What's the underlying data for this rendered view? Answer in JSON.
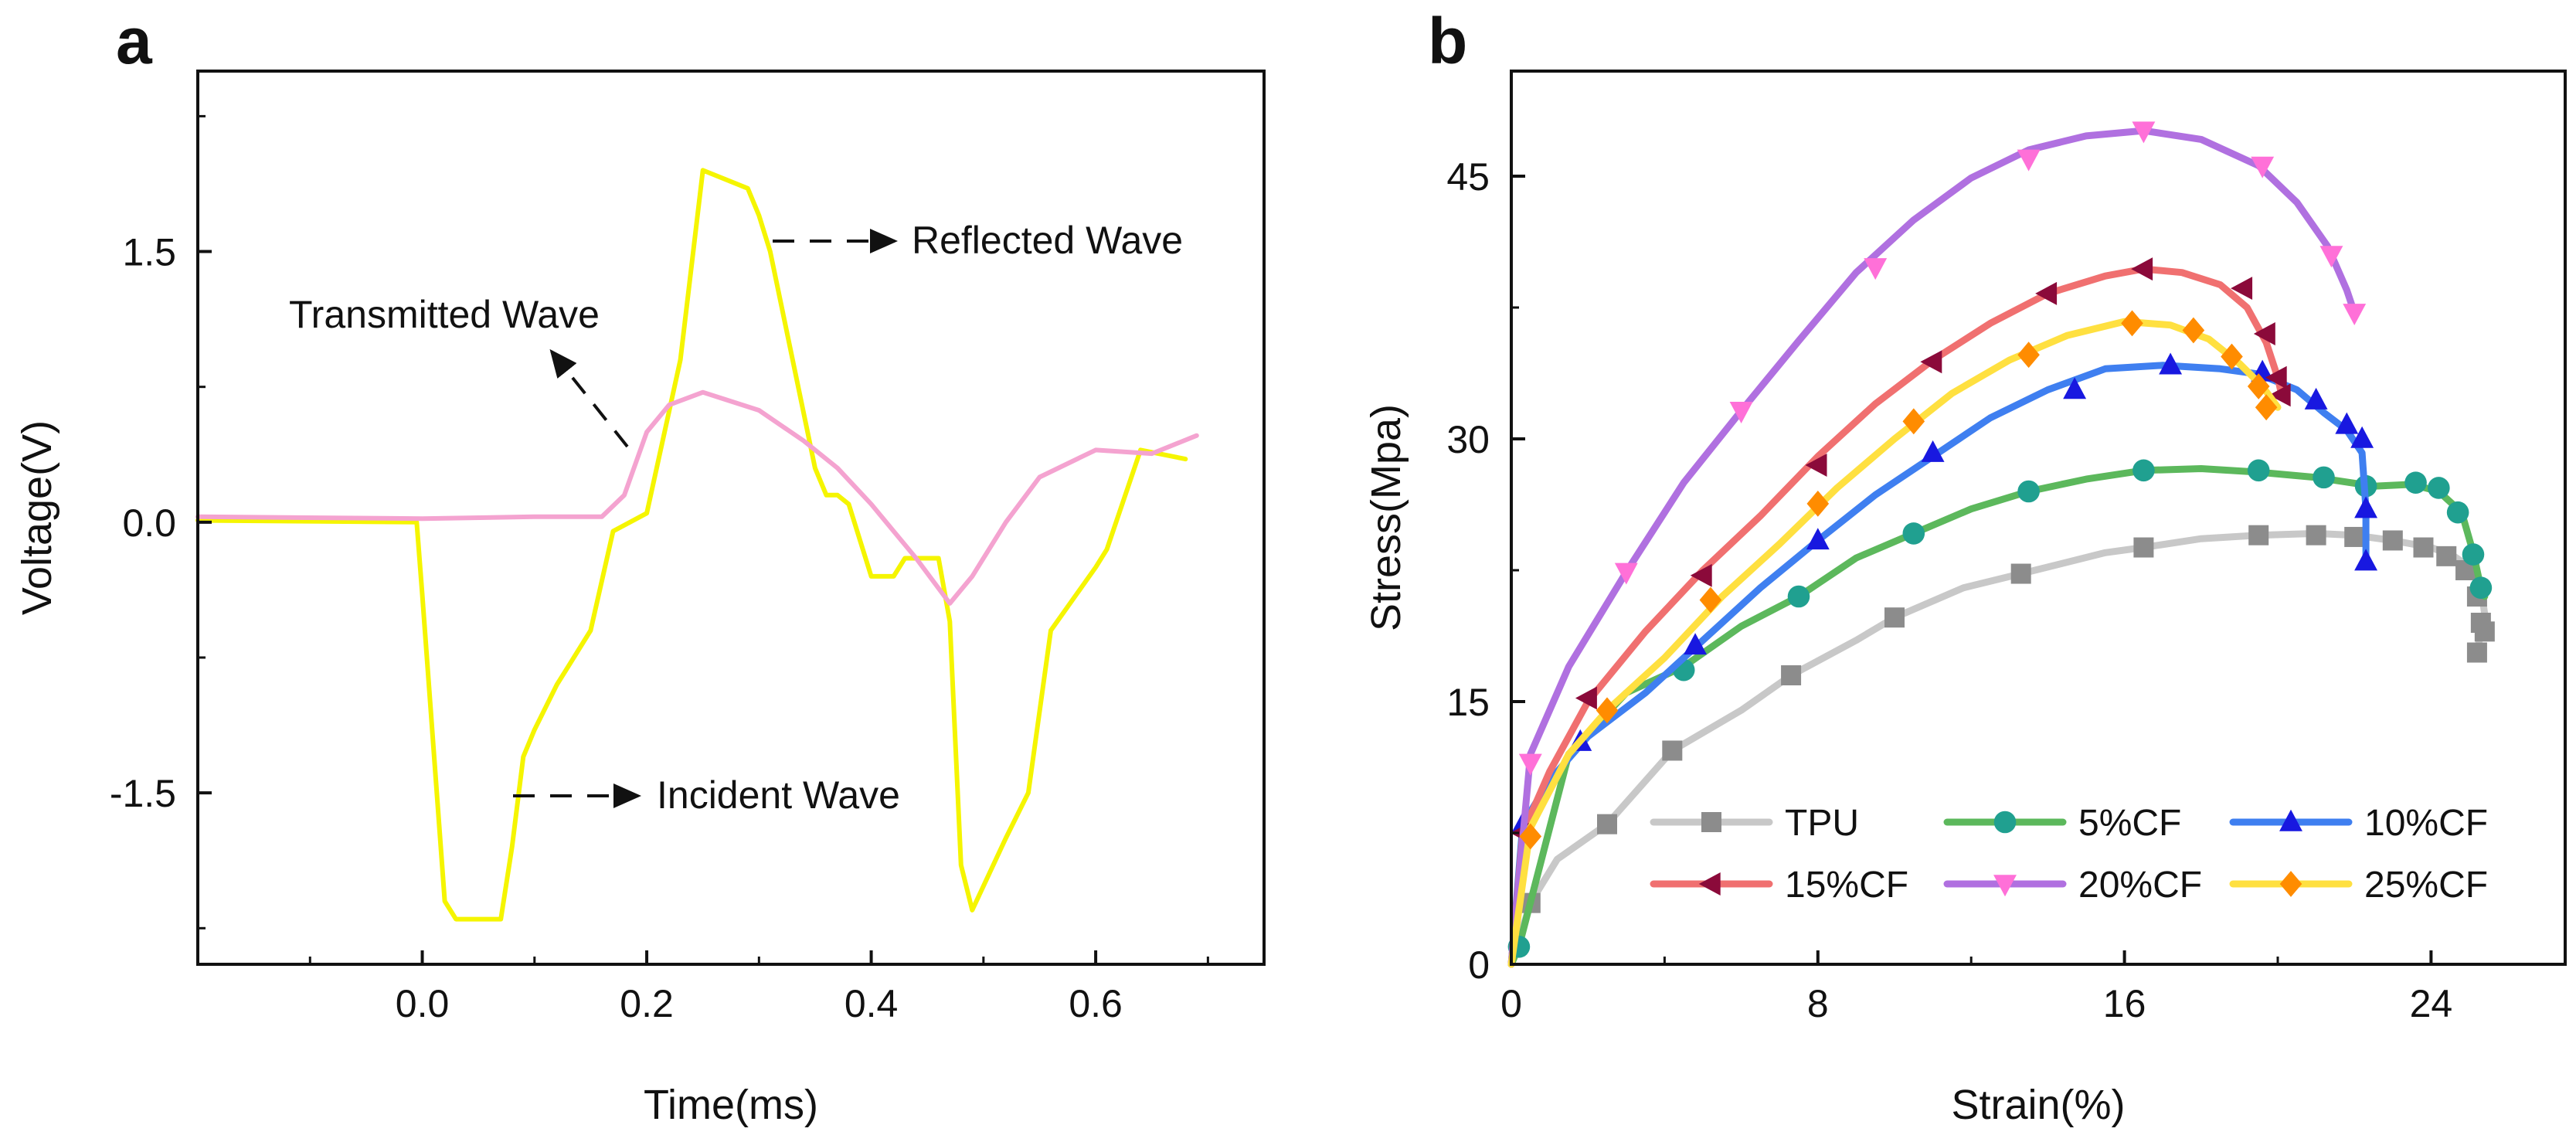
{
  "chart_data": [
    {
      "panel": "a",
      "type": "line",
      "xlabel": "Time(ms)",
      "ylabel": "Voltage(V)",
      "xlim": [
        -0.2,
        0.75
      ],
      "ylim": [
        -2.45,
        2.5
      ],
      "xticks": [
        0.0,
        0.2,
        0.4,
        0.6
      ],
      "xtick_labels": [
        "0.0",
        "0.2",
        "0.4",
        "0.6"
      ],
      "yticks": [
        1.5,
        0.0,
        -1.5
      ],
      "ytick_labels": [
        "1.5",
        "0.0",
        "-1.5"
      ],
      "annotations": {
        "reflected": "Reflected Wave",
        "transmitted": "Transmitted Wave",
        "incident": "Incident Wave"
      },
      "series": [
        {
          "name": "Incident/Reflected (yellow)",
          "color": "#f5f500",
          "x": [
            -0.2,
            -0.005,
            0.0,
            0.02,
            0.03,
            0.07,
            0.08,
            0.09,
            0.1,
            0.12,
            0.13,
            0.15,
            0.17,
            0.2,
            0.23,
            0.25,
            0.29,
            0.3,
            0.31,
            0.35,
            0.36,
            0.37,
            0.38,
            0.4,
            0.42,
            0.43,
            0.46,
            0.47,
            0.48,
            0.49,
            0.52,
            0.54,
            0.56,
            0.6,
            0.61,
            0.64,
            0.68
          ],
          "y": [
            0.01,
            0.0,
            -0.4,
            -2.1,
            -2.2,
            -2.2,
            -1.8,
            -1.3,
            -1.15,
            -0.9,
            -0.8,
            -0.6,
            -0.05,
            0.05,
            0.9,
            1.95,
            1.85,
            1.7,
            1.5,
            0.3,
            0.15,
            0.15,
            0.1,
            -0.3,
            -0.3,
            -0.2,
            -0.2,
            -0.55,
            -1.9,
            -2.15,
            -1.75,
            -1.5,
            -0.6,
            -0.25,
            -0.15,
            0.4,
            0.35
          ]
        },
        {
          "name": "Transmitted (pink)",
          "color": "#f4a3d0",
          "x": [
            -0.2,
            0.0,
            0.1,
            0.16,
            0.18,
            0.2,
            0.22,
            0.25,
            0.27,
            0.3,
            0.34,
            0.37,
            0.4,
            0.42,
            0.44,
            0.47,
            0.49,
            0.52,
            0.55,
            0.6,
            0.65,
            0.69
          ],
          "y": [
            0.03,
            0.02,
            0.03,
            0.03,
            0.15,
            0.5,
            0.65,
            0.72,
            0.68,
            0.62,
            0.45,
            0.3,
            0.1,
            -0.05,
            -0.2,
            -0.45,
            -0.3,
            0.0,
            0.25,
            0.4,
            0.38,
            0.48
          ]
        }
      ]
    },
    {
      "panel": "b",
      "type": "line",
      "xlabel": "Strain(%)",
      "ylabel": "Stress(Mpa)",
      "xlim": [
        0,
        27.5
      ],
      "ylim": [
        0,
        51
      ],
      "xticks": [
        0,
        8,
        16,
        24
      ],
      "xtick_labels": [
        "0",
        "8",
        "16",
        "24"
      ],
      "yticks": [
        0,
        15,
        30,
        45
      ],
      "ytick_labels": [
        "0",
        "15",
        "30",
        "45"
      ],
      "legend": {
        "placement": "lower-right",
        "entries": [
          "TPU",
          "5%CF",
          "10%CF",
          "15%CF",
          "20%CF",
          "25%CF"
        ]
      },
      "series": [
        {
          "name": "TPU",
          "color": "#c8c8c8",
          "marker_color": "#8c8c8c",
          "marker": "square",
          "x": [
            0,
            0.5,
            1.2,
            2.5,
            4.2,
            6.0,
            7.3,
            9.0,
            10.0,
            11.8,
            13.3,
            15.5,
            16.5,
            18.0,
            19.5,
            21.0,
            22.0,
            23.0,
            24.0,
            24.6,
            25.0,
            25.3,
            25.4,
            25.3,
            25.2
          ],
          "y": [
            0,
            3.5,
            6.0,
            8.0,
            12.2,
            14.5,
            16.5,
            18.5,
            19.8,
            21.5,
            22.3,
            23.5,
            23.8,
            24.3,
            24.5,
            24.6,
            24.5,
            24.2,
            23.8,
            23.3,
            22.7,
            21.5,
            20.0,
            19.0,
            17.8
          ],
          "markers_x": [
            0.5,
            2.5,
            4.2,
            7.3,
            10.0,
            13.3,
            16.5,
            19.5,
            21.0,
            22.0,
            23.0,
            23.8,
            24.4,
            24.9,
            25.2,
            25.3,
            25.4,
            25.2
          ],
          "markers_y": [
            3.5,
            8.0,
            12.2,
            16.5,
            19.8,
            22.3,
            23.8,
            24.5,
            24.5,
            24.4,
            24.2,
            23.8,
            23.3,
            22.5,
            21.0,
            19.5,
            19.0,
            17.8
          ]
        },
        {
          "name": "5%CF",
          "color": "#5cb85c",
          "marker_color": "#20a090",
          "marker": "circle",
          "x": [
            0,
            0.2,
            1.5,
            3.0,
            4.5,
            6.0,
            7.5,
            9.0,
            10.5,
            12.0,
            13.5,
            15.0,
            16.5,
            18.0,
            19.5,
            21.0,
            22.5,
            23.5,
            24.2,
            24.8,
            25.1,
            25.3,
            25.4
          ],
          "y": [
            0,
            1.0,
            12.0,
            15.5,
            17.0,
            19.3,
            21.0,
            23.2,
            24.6,
            26.0,
            27.0,
            27.7,
            28.2,
            28.3,
            28.1,
            27.8,
            27.3,
            27.4,
            27.0,
            25.8,
            23.5,
            21.5,
            21.0
          ],
          "markers_x": [
            0.2,
            4.5,
            7.5,
            10.5,
            13.5,
            16.5,
            19.5,
            21.2,
            22.3,
            23.6,
            24.2,
            24.7,
            25.1,
            25.3
          ],
          "markers_y": [
            1.0,
            16.8,
            21.0,
            24.6,
            27.0,
            28.2,
            28.2,
            27.8,
            27.3,
            27.5,
            27.2,
            25.8,
            23.4,
            21.5
          ]
        },
        {
          "name": "10%CF",
          "color": "#3f7ff0",
          "marker_color": "#1818e0",
          "marker": "triangle-up",
          "x": [
            0,
            0.3,
            1.0,
            2.0,
            3.5,
            5.0,
            6.5,
            8.0,
            9.5,
            11.0,
            12.5,
            14.0,
            15.5,
            17.0,
            18.5,
            19.5,
            20.5,
            21.2,
            21.8,
            22.2,
            22.3,
            22.3
          ],
          "y": [
            0,
            8.0,
            10.5,
            13.0,
            15.5,
            18.5,
            21.5,
            24.2,
            26.8,
            29.0,
            31.2,
            32.8,
            34.0,
            34.2,
            34.0,
            33.7,
            32.8,
            31.5,
            30.5,
            29.2,
            26.0,
            23.0
          ],
          "markers_x": [
            0.3,
            1.8,
            4.8,
            8.0,
            11.0,
            14.7,
            17.2,
            19.6,
            21.0,
            21.8,
            22.2,
            22.3,
            22.3
          ],
          "markers_y": [
            8.0,
            12.7,
            18.2,
            24.2,
            29.2,
            32.8,
            34.2,
            33.8,
            32.2,
            30.8,
            30.0,
            26.0,
            23.0
          ]
        },
        {
          "name": "15%CF",
          "color": "#f07070",
          "marker_color": "#8b0a3a",
          "marker": "triangle-left",
          "x": [
            0,
            0.3,
            1.0,
            2.0,
            3.5,
            5.0,
            6.5,
            8.0,
            9.5,
            11.0,
            12.5,
            14.0,
            15.5,
            16.5,
            17.5,
            18.5,
            19.2,
            19.7,
            20.0,
            20.1
          ],
          "y": [
            0,
            7.5,
            11.0,
            15.0,
            19.0,
            22.5,
            25.6,
            29.0,
            32.0,
            34.5,
            36.6,
            38.3,
            39.3,
            39.7,
            39.5,
            38.8,
            37.5,
            35.5,
            33.5,
            32.5
          ],
          "markers_x": [
            0.3,
            2.0,
            5.0,
            8.0,
            11.0,
            14.0,
            16.5,
            19.1,
            19.7,
            20.0,
            20.1
          ],
          "markers_y": [
            7.5,
            15.2,
            22.2,
            28.5,
            34.4,
            38.3,
            39.7,
            38.6,
            36.0,
            33.5,
            32.5
          ]
        },
        {
          "name": "20%CF",
          "color": "#b070e0",
          "marker_color": "#ff70d8",
          "marker": "triangle-down",
          "x": [
            0,
            0.5,
            1.5,
            3.0,
            4.5,
            6.0,
            7.5,
            9.0,
            10.5,
            12.0,
            13.5,
            15.0,
            16.5,
            18.0,
            19.5,
            20.5,
            21.3,
            21.8,
            22.0
          ],
          "y": [
            0,
            12.0,
            17.0,
            22.4,
            27.5,
            31.6,
            35.6,
            39.5,
            42.5,
            44.9,
            46.5,
            47.3,
            47.6,
            47.1,
            45.6,
            43.5,
            41.0,
            38.5,
            37.2
          ],
          "markers_x": [
            0.5,
            3.0,
            6.0,
            9.5,
            13.5,
            16.5,
            19.6,
            21.4,
            22.0
          ],
          "markers_y": [
            11.5,
            22.4,
            31.6,
            39.8,
            46.0,
            47.6,
            45.6,
            40.5,
            37.2
          ]
        },
        {
          "name": "25%CF",
          "color": "#ffe040",
          "marker_color": "#ff8c00",
          "marker": "diamond",
          "x": [
            0,
            0.5,
            1.5,
            2.5,
            4.0,
            5.5,
            7.0,
            8.5,
            10.0,
            11.5,
            13.0,
            14.5,
            16.0,
            17.2,
            18.2,
            19.0,
            19.6,
            20.0
          ],
          "y": [
            0,
            7.8,
            12.0,
            14.5,
            17.5,
            21.0,
            24.0,
            27.2,
            30.0,
            32.6,
            34.5,
            35.9,
            36.7,
            36.5,
            35.7,
            34.3,
            33.0,
            31.8
          ],
          "markers_x": [
            0.5,
            2.5,
            5.2,
            8.0,
            10.5,
            13.5,
            16.2,
            17.8,
            18.8,
            19.5,
            19.7
          ],
          "markers_y": [
            7.3,
            14.5,
            20.8,
            26.3,
            31.0,
            34.8,
            36.6,
            36.2,
            34.7,
            33.0,
            31.8
          ]
        }
      ]
    }
  ]
}
